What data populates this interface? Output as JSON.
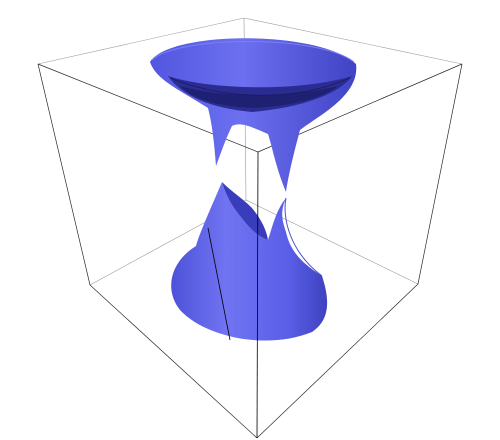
{
  "figure": {
    "surface": "hyperboloid-of-one-sheet-cut",
    "colors": {
      "surface_light": "#6c70f0",
      "surface_mid": "#5559e6",
      "surface_dark": "#2a2c92",
      "surface_shadow": "#1e2072",
      "box_edge": "#404040",
      "background": "#ffffff"
    }
  }
}
